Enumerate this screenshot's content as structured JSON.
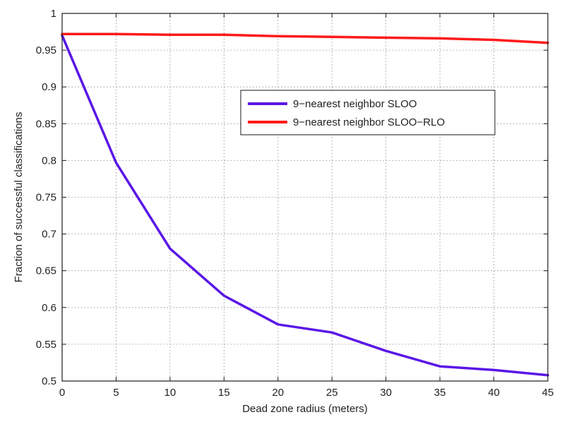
{
  "chart_data": {
    "type": "line",
    "title": "",
    "xlabel": "Dead zone radius (meters)",
    "ylabel": "Fraction of successful classifications",
    "xlim": [
      0,
      45
    ],
    "ylim": [
      0.5,
      1
    ],
    "x_ticks": [
      0,
      5,
      10,
      15,
      20,
      25,
      30,
      35,
      40,
      45
    ],
    "y_ticks": [
      0.5,
      0.55,
      0.6,
      0.65,
      0.7,
      0.75,
      0.8,
      0.85,
      0.9,
      0.95,
      1
    ],
    "x_tick_labels": [
      "0",
      "5",
      "10",
      "15",
      "20",
      "25",
      "30",
      "35",
      "40",
      "45"
    ],
    "y_tick_labels": [
      "0.5",
      "0.55",
      "0.6",
      "0.65",
      "0.7",
      "0.75",
      "0.8",
      "0.85",
      "0.9",
      "0.95",
      "1"
    ],
    "grid": true,
    "legend_position": "upper-right-center",
    "x": [
      0,
      5,
      10,
      15,
      20,
      25,
      30,
      35,
      40,
      45
    ],
    "series": [
      {
        "name": "9−nearest neighbor SLOO",
        "color": "#5a17e6",
        "values": [
          0.97,
          0.797,
          0.68,
          0.616,
          0.577,
          0.566,
          0.541,
          0.52,
          0.515,
          0.508
        ]
      },
      {
        "name": "9−nearest neighbor SLOO−RLO",
        "color": "#ff1a1a",
        "values": [
          0.972,
          0.972,
          0.971,
          0.971,
          0.969,
          0.968,
          0.967,
          0.966,
          0.964,
          0.96
        ]
      }
    ]
  }
}
